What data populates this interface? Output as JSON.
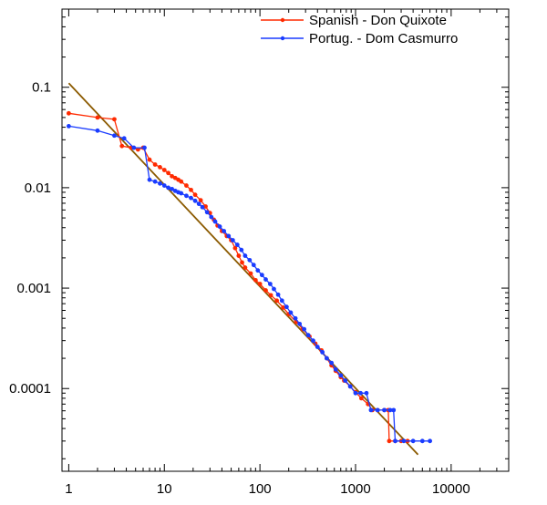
{
  "chart_data": {
    "type": "line",
    "title": "",
    "xlabel": "",
    "ylabel": "",
    "x_scale": "log",
    "y_scale": "log",
    "xlim": [
      0.85,
      40000
    ],
    "ylim": [
      1.5e-05,
      0.6
    ],
    "x_ticks": [
      1,
      10,
      100,
      1000,
      10000
    ],
    "x_tick_labels": [
      "1",
      "10",
      "100",
      "1000",
      "10000"
    ],
    "y_ticks": [
      0.0001,
      0.001,
      0.01,
      0.1
    ],
    "y_tick_labels": [
      "0.0001",
      "0.001",
      "0.01",
      "0.1"
    ],
    "grid": false,
    "legend_position": "top-right",
    "series": [
      {
        "name": "Spanish - Don Quixote",
        "color": "#ff2a00",
        "points": [
          [
            1,
            0.055
          ],
          [
            2,
            0.05
          ],
          [
            3,
            0.048
          ],
          [
            3.6,
            0.026
          ],
          [
            4.5,
            0.025
          ],
          [
            5.3,
            0.024
          ],
          [
            6,
            0.025
          ],
          [
            7,
            0.019
          ],
          [
            8,
            0.017
          ],
          [
            9,
            0.016
          ],
          [
            10,
            0.015
          ],
          [
            11,
            0.014
          ],
          [
            12,
            0.013
          ],
          [
            13,
            0.0125
          ],
          [
            14,
            0.012
          ],
          [
            15,
            0.0115
          ],
          [
            17,
            0.0105
          ],
          [
            19,
            0.0095
          ],
          [
            21,
            0.0085
          ],
          [
            24,
            0.0075
          ],
          [
            27,
            0.0065
          ],
          [
            30,
            0.0056
          ],
          [
            33,
            0.0048
          ],
          [
            36,
            0.0042
          ],
          [
            40,
            0.0037
          ],
          [
            45,
            0.0033
          ],
          [
            50,
            0.003
          ],
          [
            55,
            0.0025
          ],
          [
            60,
            0.0021
          ],
          [
            65,
            0.0018
          ],
          [
            70,
            0.0016
          ],
          [
            80,
            0.0014
          ],
          [
            90,
            0.0012
          ],
          [
            100,
            0.0011
          ],
          [
            115,
            0.00095
          ],
          [
            130,
            0.00085
          ],
          [
            150,
            0.00075
          ],
          [
            175,
            0.00064
          ],
          [
            200,
            0.00055
          ],
          [
            240,
            0.00046
          ],
          [
            280,
            0.00039
          ],
          [
            330,
            0.00033
          ],
          [
            380,
            0.00028
          ],
          [
            440,
            0.00024
          ],
          [
            500,
            0.0002
          ],
          [
            560,
            0.00017
          ],
          [
            620,
            0.00015
          ],
          [
            700,
            0.00013
          ],
          [
            760,
            0.00012
          ],
          [
            880,
            0.000105
          ],
          [
            1000,
            9.2e-05
          ],
          [
            1150,
            8e-05
          ],
          [
            1350,
            7e-05
          ],
          [
            1500,
            6.1e-05
          ],
          [
            1700,
            6.1e-05
          ],
          [
            2000,
            6.1e-05
          ],
          [
            2200,
            6.1e-05
          ],
          [
            2250,
            3e-05
          ],
          [
            2600,
            3e-05
          ],
          [
            3000,
            3e-05
          ],
          [
            3500,
            3e-05
          ]
        ]
      },
      {
        "name": "Portug. - Dom Casmurro",
        "color": "#1a3cff",
        "points": [
          [
            1,
            0.041
          ],
          [
            2,
            0.037
          ],
          [
            3,
            0.033
          ],
          [
            3.8,
            0.031
          ],
          [
            4.8,
            0.025
          ],
          [
            6.2,
            0.025
          ],
          [
            7,
            0.012
          ],
          [
            8,
            0.0115
          ],
          [
            9,
            0.011
          ],
          [
            10,
            0.0105
          ],
          [
            11,
            0.01
          ],
          [
            12,
            0.0097
          ],
          [
            13,
            0.0093
          ],
          [
            14,
            0.009
          ],
          [
            15,
            0.0088
          ],
          [
            17,
            0.0083
          ],
          [
            19,
            0.0079
          ],
          [
            21,
            0.0074
          ],
          [
            23,
            0.0069
          ],
          [
            25,
            0.0064
          ],
          [
            28,
            0.0057
          ],
          [
            31,
            0.0051
          ],
          [
            34,
            0.0046
          ],
          [
            38,
            0.0041
          ],
          [
            42,
            0.0037
          ],
          [
            47,
            0.0033
          ],
          [
            52,
            0.003
          ],
          [
            58,
            0.0027
          ],
          [
            64,
            0.0024
          ],
          [
            70,
            0.0021
          ],
          [
            78,
            0.0019
          ],
          [
            86,
            0.0017
          ],
          [
            95,
            0.0015
          ],
          [
            105,
            0.00135
          ],
          [
            115,
            0.00122
          ],
          [
            128,
            0.0011
          ],
          [
            140,
            0.00098
          ],
          [
            155,
            0.00086
          ],
          [
            170,
            0.00075
          ],
          [
            190,
            0.00065
          ],
          [
            210,
            0.00057
          ],
          [
            235,
            0.0005
          ],
          [
            260,
            0.00044
          ],
          [
            290,
            0.00039
          ],
          [
            320,
            0.00034
          ],
          [
            360,
            0.0003
          ],
          [
            400,
            0.00026
          ],
          [
            450,
            0.00023
          ],
          [
            500,
            0.0002
          ],
          [
            560,
            0.00018
          ],
          [
            620,
            0.000155
          ],
          [
            700,
            0.000135
          ],
          [
            780,
            0.00012
          ],
          [
            880,
            0.000105
          ],
          [
            1000,
            9e-05
          ],
          [
            1130,
            9e-05
          ],
          [
            1300,
            9e-05
          ],
          [
            1450,
            6.1e-05
          ],
          [
            1700,
            6.1e-05
          ],
          [
            2000,
            6.1e-05
          ],
          [
            2300,
            6.1e-05
          ],
          [
            2500,
            6.1e-05
          ],
          [
            2600,
            3e-05
          ],
          [
            3200,
            3e-05
          ],
          [
            4000,
            3e-05
          ],
          [
            5000,
            3e-05
          ],
          [
            6000,
            3e-05
          ]
        ]
      },
      {
        "name": "",
        "color": "#8b5a00",
        "markers": false,
        "points": [
          [
            1,
            0.11
          ],
          [
            4500,
            2.2e-05
          ]
        ]
      }
    ]
  }
}
